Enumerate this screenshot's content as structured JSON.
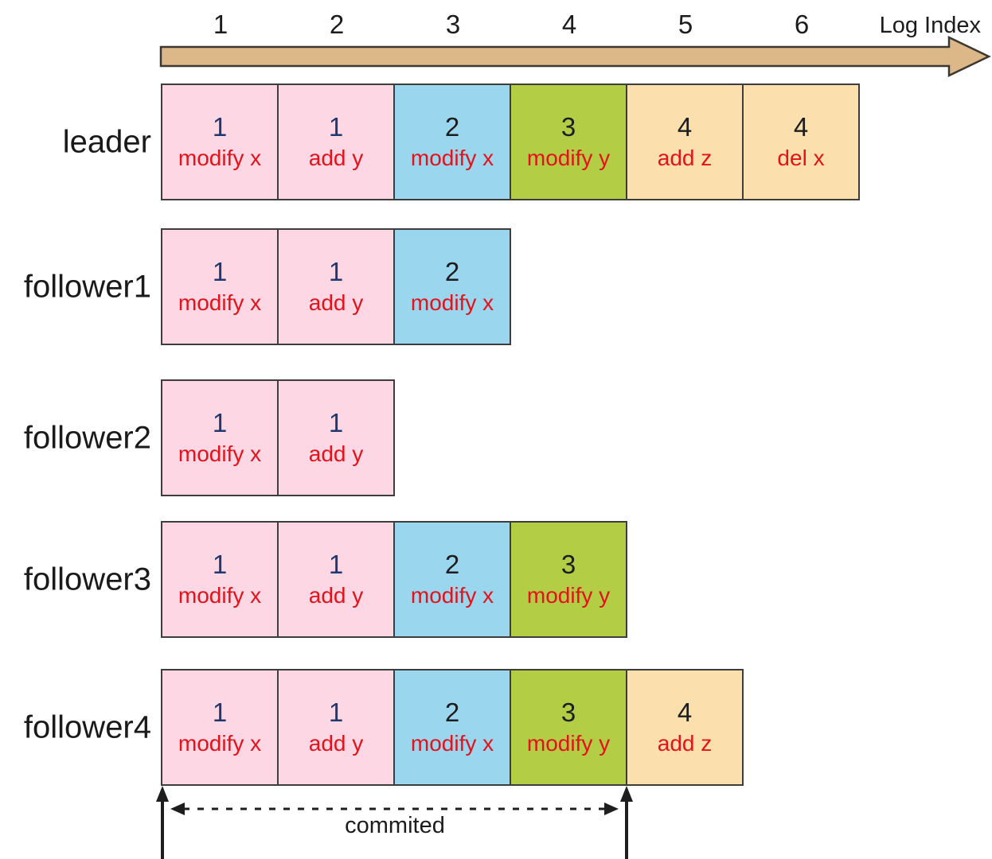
{
  "axis": {
    "label": "Log Index",
    "ticks": [
      "1",
      "2",
      "3",
      "4",
      "5",
      "6"
    ]
  },
  "rows": [
    {
      "label": "leader",
      "entries": [
        {
          "term": "1",
          "op": "modify x",
          "color": "pink"
        },
        {
          "term": "1",
          "op": "add y",
          "color": "pink"
        },
        {
          "term": "2",
          "op": "modify x",
          "color": "blue"
        },
        {
          "term": "3",
          "op": "modify y",
          "color": "green"
        },
        {
          "term": "4",
          "op": "add z",
          "color": "tan"
        },
        {
          "term": "4",
          "op": "del x",
          "color": "tan"
        }
      ]
    },
    {
      "label": "follower1",
      "entries": [
        {
          "term": "1",
          "op": "modify x",
          "color": "pink"
        },
        {
          "term": "1",
          "op": "add y",
          "color": "pink"
        },
        {
          "term": "2",
          "op": "modify x",
          "color": "blue"
        }
      ]
    },
    {
      "label": "follower2",
      "entries": [
        {
          "term": "1",
          "op": "modify x",
          "color": "pink"
        },
        {
          "term": "1",
          "op": "add y",
          "color": "pink"
        }
      ]
    },
    {
      "label": "follower3",
      "entries": [
        {
          "term": "1",
          "op": "modify x",
          "color": "pink"
        },
        {
          "term": "1",
          "op": "add y",
          "color": "pink"
        },
        {
          "term": "2",
          "op": "modify x",
          "color": "blue"
        },
        {
          "term": "3",
          "op": "modify y",
          "color": "green"
        }
      ]
    },
    {
      "label": "follower4",
      "entries": [
        {
          "term": "1",
          "op": "modify x",
          "color": "pink"
        },
        {
          "term": "1",
          "op": "add y",
          "color": "pink"
        },
        {
          "term": "2",
          "op": "modify x",
          "color": "blue"
        },
        {
          "term": "3",
          "op": "modify y",
          "color": "green"
        },
        {
          "term": "4",
          "op": "add z",
          "color": "tan"
        }
      ]
    }
  ],
  "annotation": {
    "committed_label": "commited"
  },
  "colors": {
    "cell_pink": "#FDD7E4",
    "cell_blue": "#9AD6EE",
    "cell_green": "#B3CD44",
    "cell_tan": "#FBDFAD",
    "term_on_pink": "#1F3870",
    "term_on_other": "#1D1D1D",
    "op_text": "#E4121B",
    "axis_arrow_fill": "#DCB888",
    "axis_arrow_stroke": "#3C3831",
    "annotation_stroke": "#1E1E1E"
  }
}
